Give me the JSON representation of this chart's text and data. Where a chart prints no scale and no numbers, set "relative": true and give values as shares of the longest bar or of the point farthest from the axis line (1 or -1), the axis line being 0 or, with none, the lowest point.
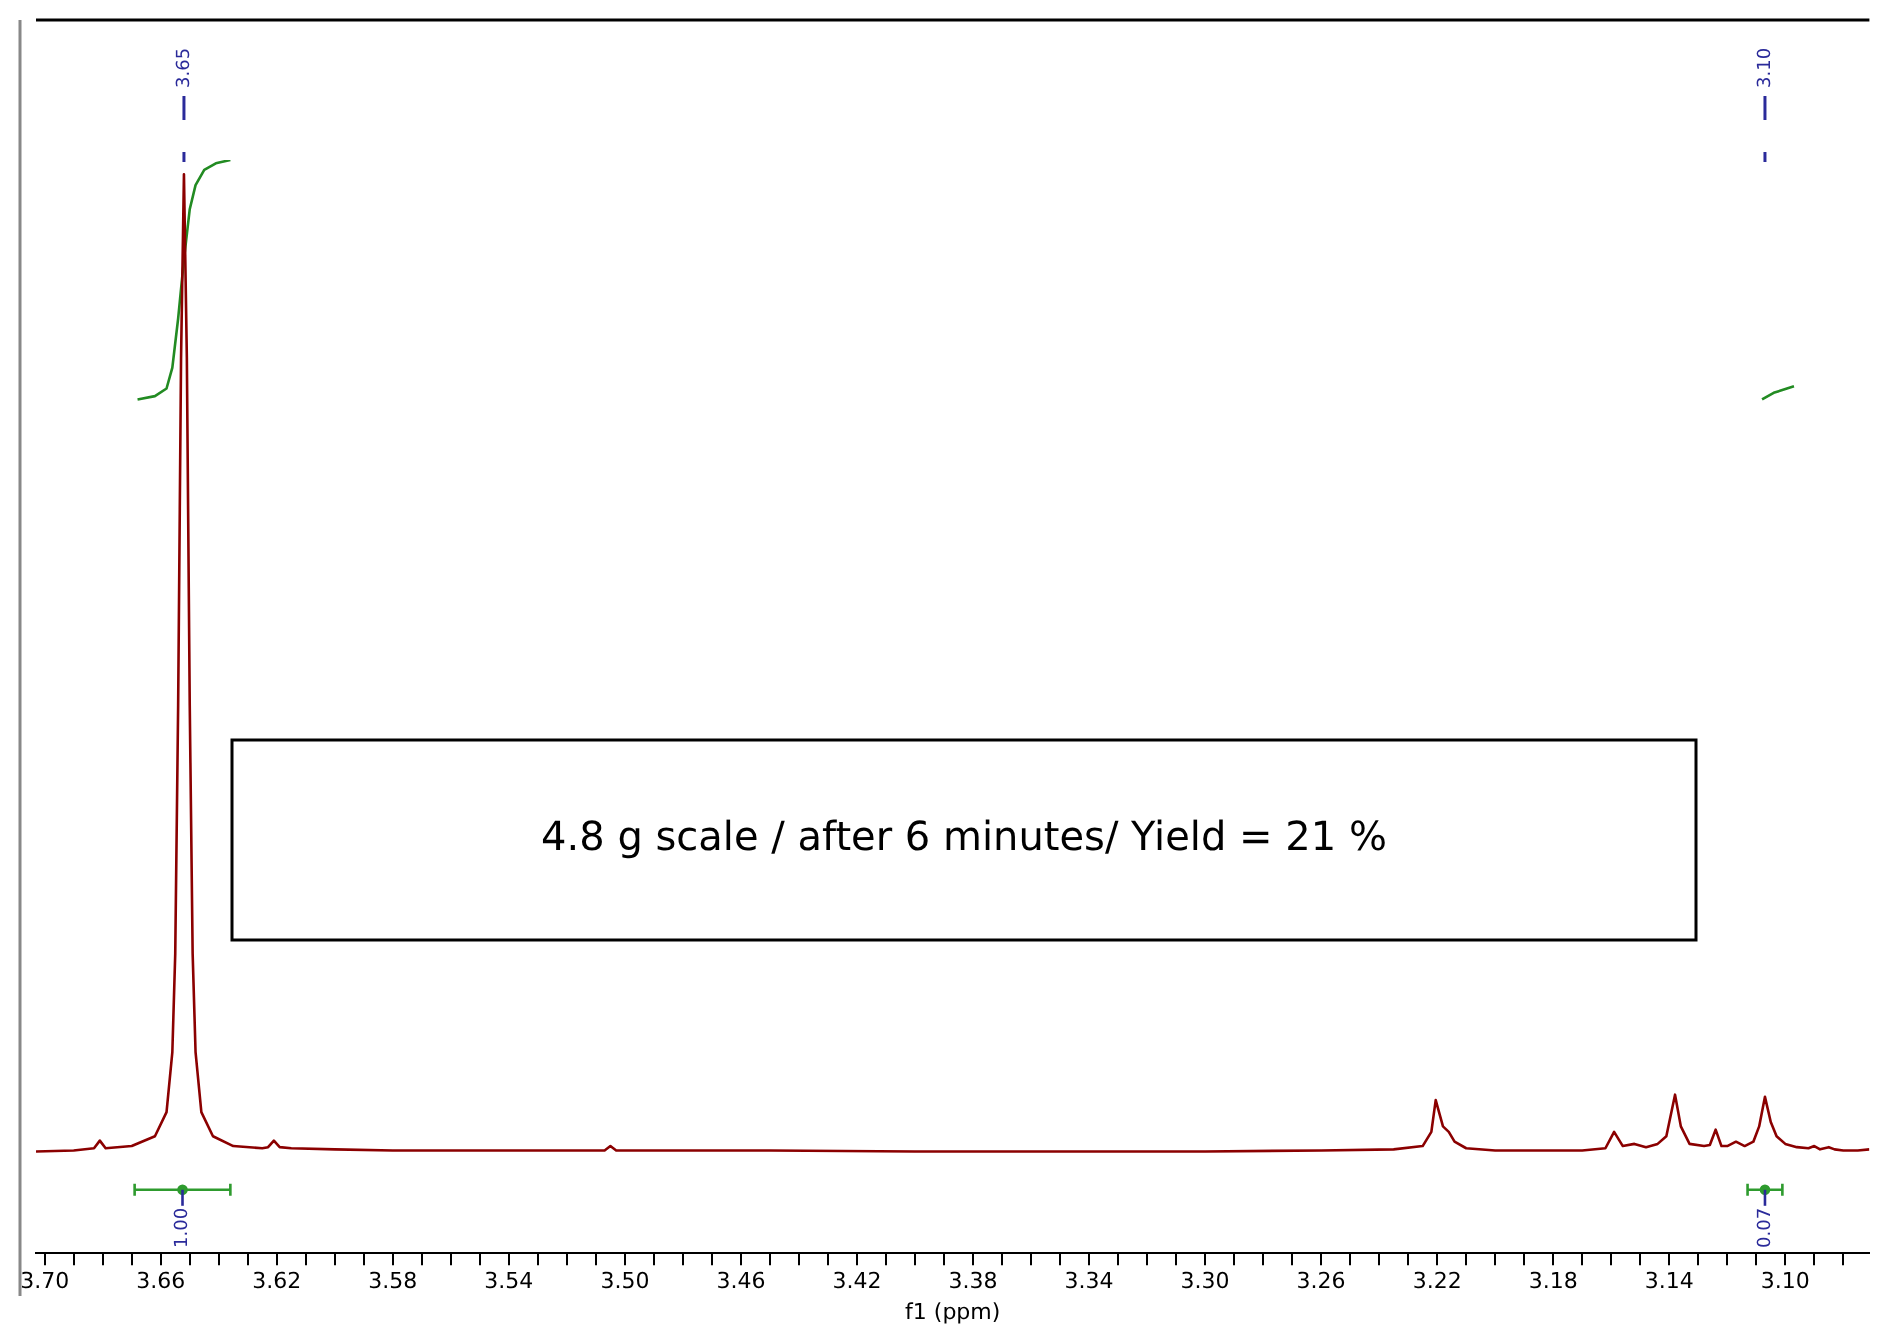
{
  "chart_data": {
    "type": "line",
    "xlabel": "f1 (ppm)",
    "relative": true,
    "xlim": [
      3.703,
      3.071
    ],
    "xticks": [
      {
        "value": 3.7,
        "label": "3.70"
      },
      {
        "value": 3.69,
        "label": null
      },
      {
        "value": 3.68,
        "label": null
      },
      {
        "value": 3.67,
        "label": null
      },
      {
        "value": 3.66,
        "label": "3.66"
      },
      {
        "value": 3.65,
        "label": null
      },
      {
        "value": 3.64,
        "label": null
      },
      {
        "value": 3.63,
        "label": null
      },
      {
        "value": 3.62,
        "label": "3.62"
      },
      {
        "value": 3.61,
        "label": null
      },
      {
        "value": 3.6,
        "label": null
      },
      {
        "value": 3.59,
        "label": null
      },
      {
        "value": 3.58,
        "label": "3.58"
      },
      {
        "value": 3.57,
        "label": null
      },
      {
        "value": 3.56,
        "label": null
      },
      {
        "value": 3.55,
        "label": null
      },
      {
        "value": 3.54,
        "label": "3.54"
      },
      {
        "value": 3.53,
        "label": null
      },
      {
        "value": 3.52,
        "label": null
      },
      {
        "value": 3.51,
        "label": null
      },
      {
        "value": 3.5,
        "label": "3.50"
      },
      {
        "value": 3.49,
        "label": null
      },
      {
        "value": 3.48,
        "label": null
      },
      {
        "value": 3.47,
        "label": null
      },
      {
        "value": 3.46,
        "label": "3.46"
      },
      {
        "value": 3.45,
        "label": null
      },
      {
        "value": 3.44,
        "label": null
      },
      {
        "value": 3.43,
        "label": null
      },
      {
        "value": 3.42,
        "label": "3.42"
      },
      {
        "value": 3.41,
        "label": null
      },
      {
        "value": 3.4,
        "label": null
      },
      {
        "value": 3.39,
        "label": null
      },
      {
        "value": 3.38,
        "label": "3.38"
      },
      {
        "value": 3.37,
        "label": null
      },
      {
        "value": 3.36,
        "label": null
      },
      {
        "value": 3.35,
        "label": null
      },
      {
        "value": 3.34,
        "label": "3.34"
      },
      {
        "value": 3.33,
        "label": null
      },
      {
        "value": 3.32,
        "label": null
      },
      {
        "value": 3.31,
        "label": null
      },
      {
        "value": 3.3,
        "label": "3.30"
      },
      {
        "value": 3.29,
        "label": null
      },
      {
        "value": 3.28,
        "label": null
      },
      {
        "value": 3.27,
        "label": null
      },
      {
        "value": 3.26,
        "label": "3.26"
      },
      {
        "value": 3.25,
        "label": null
      },
      {
        "value": 3.24,
        "label": null
      },
      {
        "value": 3.23,
        "label": null
      },
      {
        "value": 3.22,
        "label": "3.22"
      },
      {
        "value": 3.21,
        "label": null
      },
      {
        "value": 3.2,
        "label": null
      },
      {
        "value": 3.19,
        "label": null
      },
      {
        "value": 3.18,
        "label": "3.18"
      },
      {
        "value": 3.17,
        "label": null
      },
      {
        "value": 3.16,
        "label": null
      },
      {
        "value": 3.15,
        "label": null
      },
      {
        "value": 3.14,
        "label": "3.14"
      },
      {
        "value": 3.13,
        "label": null
      },
      {
        "value": 3.12,
        "label": null
      },
      {
        "value": 3.11,
        "label": null
      },
      {
        "value": 3.1,
        "label": "3.10"
      },
      {
        "value": 3.09,
        "label": null
      },
      {
        "value": 3.08,
        "label": null
      }
    ],
    "series": [
      {
        "type": "line",
        "color": "#8b0000",
        "x": [
          3.703,
          3.69,
          3.683,
          3.681,
          3.679,
          3.67,
          3.662,
          3.658,
          3.656,
          3.655,
          3.654,
          3.653,
          3.652,
          3.651,
          3.65,
          3.649,
          3.648,
          3.646,
          3.642,
          3.635,
          3.625,
          3.623,
          3.621,
          3.619,
          3.615,
          3.6,
          3.58,
          3.55,
          3.507,
          3.505,
          3.503,
          3.45,
          3.4,
          3.3,
          3.26,
          3.235,
          3.225,
          3.222,
          3.2205,
          3.218,
          3.216,
          3.214,
          3.21,
          3.2,
          3.17,
          3.162,
          3.159,
          3.156,
          3.152,
          3.148,
          3.144,
          3.141,
          3.138,
          3.136,
          3.133,
          3.128,
          3.126,
          3.124,
          3.122,
          3.12,
          3.117,
          3.114,
          3.111,
          3.109,
          3.107,
          3.105,
          3.103,
          3.1,
          3.096,
          3.092,
          3.09,
          3.088,
          3.085,
          3.083,
          3.08,
          3.075,
          3.071
        ],
        "values": [
          0.093,
          0.094,
          0.096,
          0.103,
          0.096,
          0.098,
          0.107,
          0.129,
          0.184,
          0.274,
          0.501,
          0.819,
          0.987,
          0.819,
          0.501,
          0.274,
          0.184,
          0.129,
          0.107,
          0.098,
          0.096,
          0.097,
          0.103,
          0.097,
          0.096,
          0.095,
          0.094,
          0.094,
          0.094,
          0.098,
          0.094,
          0.094,
          0.093,
          0.093,
          0.094,
          0.095,
          0.098,
          0.111,
          0.14,
          0.116,
          0.111,
          0.102,
          0.096,
          0.094,
          0.094,
          0.096,
          0.111,
          0.098,
          0.1,
          0.097,
          0.1,
          0.107,
          0.145,
          0.116,
          0.1,
          0.098,
          0.099,
          0.113,
          0.098,
          0.098,
          0.102,
          0.098,
          0.102,
          0.116,
          0.143,
          0.12,
          0.107,
          0.1,
          0.097,
          0.096,
          0.098,
          0.095,
          0.097,
          0.095,
          0.094,
          0.094,
          0.095
        ]
      },
      {
        "type": "line",
        "color": "#228b22",
        "x": [
          3.668,
          3.662,
          3.658,
          3.656,
          3.654,
          3.652,
          3.65,
          3.648,
          3.645,
          3.641,
          3.636
        ],
        "values": [
          0.781,
          0.784,
          0.791,
          0.81,
          0.855,
          0.909,
          0.955,
          0.977,
          0.991,
          0.997,
          1
        ]
      },
      {
        "type": "line",
        "color": "#228b22",
        "x": [
          3.108,
          3.104,
          3.097
        ],
        "values": [
          0.781,
          0.787,
          0.793
        ]
      },
      {
        "type": "scatter",
        "color": "#2e9b2e",
        "x": [
          3.6525,
          3.107
        ],
        "values": [
          0.058,
          0.058
        ],
        "xerrors": [
          0.0165,
          0.006
        ]
      }
    ],
    "annotations": [
      {
        "text": "3.65",
        "x": 3.652
      },
      {
        "text": "3.10",
        "x": 3.107
      },
      {
        "text": "1.00",
        "x": 3.6525,
        "y": 0.058
      },
      {
        "text": "0.07",
        "x": 3.107,
        "y": 0.058
      },
      "4.8 g scale / after 6 minutes/ Yield = 21 %"
    ]
  }
}
